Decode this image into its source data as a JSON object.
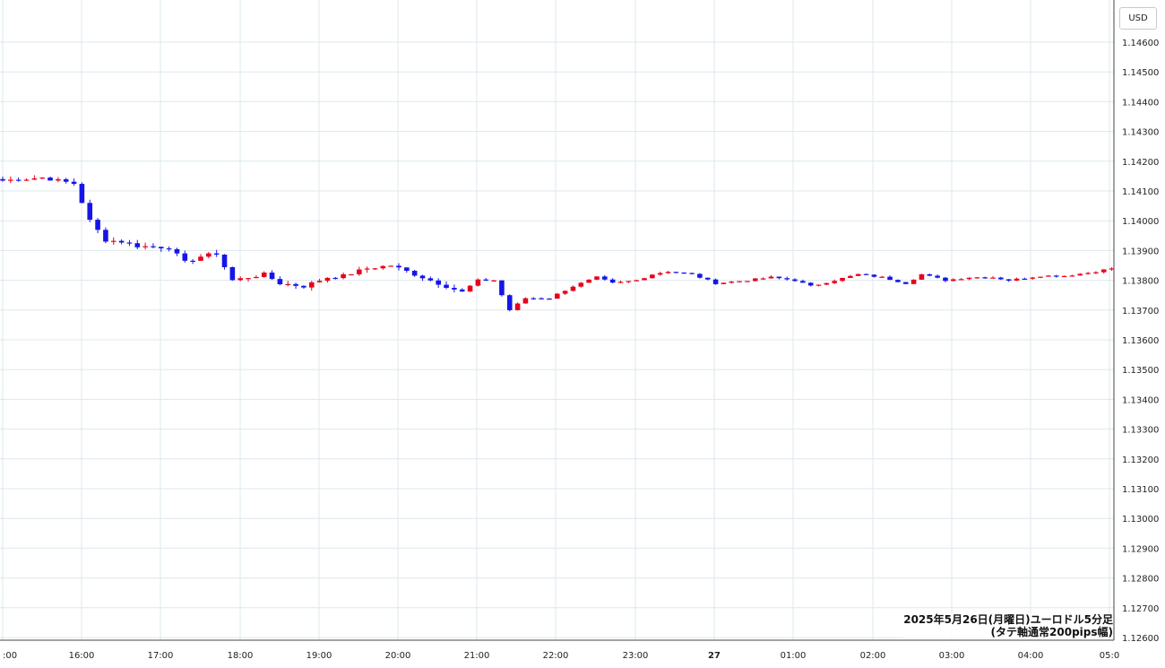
{
  "currency_badge": "USD",
  "caption": {
    "line1": "2025年5月26日(月曜日)ユーロドル5分足",
    "line2": "(タテ軸通常200pips幅)"
  },
  "colors": {
    "up": "#e8001c",
    "down": "#1515e8",
    "grid": "#dde8ee",
    "axis_text": "#222222"
  },
  "chart_data": {
    "type": "candlestick",
    "title": "2025年5月26日(月曜日)ユーロドル5分足",
    "subtitle": "(タテ軸通常200pips幅)",
    "y_unit": "USD",
    "ylim": [
      1.1258,
      1.1468
    ],
    "y_ticks": [
      "1.14600",
      "1.14500",
      "1.14400",
      "1.14300",
      "1.14200",
      "1.14100",
      "1.14000",
      "1.13900",
      "1.13800",
      "1.13700",
      "1.13600",
      "1.13500",
      "1.13400",
      "1.13300",
      "1.13200",
      "1.13100",
      "1.13000",
      "1.12900",
      "1.12800",
      "1.12700",
      "1.12600"
    ],
    "x_ticks": [
      ":00",
      "16:00",
      "17:00",
      "18:00",
      "19:00",
      "20:00",
      "21:00",
      "22:00",
      "23:00",
      "27",
      "01:00",
      "02:00",
      "03:00",
      "04:00",
      "05:0"
    ],
    "grid": true,
    "waypoints": [
      [
        0,
        1.14135
      ],
      [
        5,
        1.14145
      ],
      [
        7,
        1.14135
      ],
      [
        9,
        1.14125
      ],
      [
        11,
        1.14
      ],
      [
        13,
        1.13935
      ],
      [
        15,
        1.1393
      ],
      [
        17,
        1.13915
      ],
      [
        21,
        1.1391
      ],
      [
        23,
        1.1386
      ],
      [
        25,
        1.1388
      ],
      [
        27,
        1.1389
      ],
      [
        29,
        1.138
      ],
      [
        33,
        1.1382
      ],
      [
        35,
        1.1379
      ],
      [
        38,
        1.1378
      ],
      [
        41,
        1.1381
      ],
      [
        43,
        1.13815
      ],
      [
        46,
        1.1384
      ],
      [
        49,
        1.1385
      ],
      [
        52,
        1.1382
      ],
      [
        55,
        1.1379
      ],
      [
        58,
        1.1376
      ],
      [
        60,
        1.138
      ],
      [
        62,
        1.138
      ],
      [
        64,
        1.137
      ],
      [
        66,
        1.1374
      ],
      [
        69,
        1.1374
      ],
      [
        72,
        1.1378
      ],
      [
        75,
        1.1381
      ],
      [
        77,
        1.1379
      ],
      [
        80,
        1.138
      ],
      [
        82,
        1.1382
      ],
      [
        84,
        1.1383
      ],
      [
        87,
        1.1382
      ],
      [
        90,
        1.1379
      ],
      [
        94,
        1.138
      ],
      [
        97,
        1.1381
      ],
      [
        100,
        1.138
      ],
      [
        102,
        1.1378
      ],
      [
        105,
        1.138
      ],
      [
        108,
        1.1382
      ],
      [
        111,
        1.1381
      ],
      [
        114,
        1.1379
      ],
      [
        116,
        1.1382
      ],
      [
        119,
        1.138
      ],
      [
        122,
        1.1381
      ],
      [
        125,
        1.1381
      ],
      [
        127,
        1.138
      ],
      [
        131,
        1.13815
      ],
      [
        134,
        1.13815
      ],
      [
        137,
        1.13825
      ],
      [
        139,
        1.13835
      ],
      [
        140,
        1.1384
      ]
    ]
  }
}
